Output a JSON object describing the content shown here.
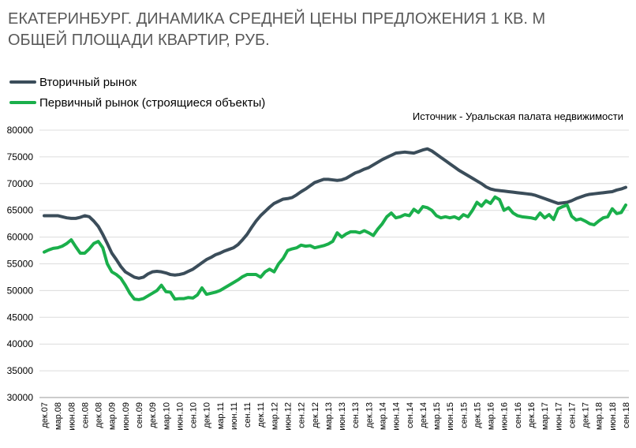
{
  "chart_data": {
    "type": "line",
    "title": "ЕКАТЕРИНБУРГ. ДИНАМИКА СРЕДНЕЙ ЦЕНЫ ПРЕДЛОЖЕНИЯ 1 КВ. М ОБЩЕЙ ПЛОЩАДИ КВАРТИР,  РУБ.",
    "source": "Источник - Уральская палата недвижимости",
    "categories": [
      "дек.07",
      null,
      null,
      "мар.08",
      null,
      null,
      "июн.08",
      null,
      null,
      "сен.08",
      null,
      null,
      "дек.08",
      null,
      null,
      "мар.09",
      null,
      null,
      "июн.09",
      null,
      null,
      "сен.09",
      null,
      null,
      "дек.09",
      null,
      null,
      "мар.10",
      null,
      null,
      "июн.10",
      null,
      null,
      "сен.10",
      null,
      null,
      "дек.10",
      null,
      null,
      "мар.11",
      null,
      null,
      "июн.11",
      null,
      null,
      "сен.11",
      null,
      null,
      "дек.11",
      null,
      null,
      "мар.12",
      null,
      null,
      "июн.12",
      null,
      null,
      "сен.12",
      null,
      null,
      "дек.12",
      null,
      null,
      "мар.13",
      null,
      null,
      "июн.13",
      null,
      null,
      "сен.13",
      null,
      null,
      "дек.13",
      null,
      null,
      "мар.14",
      null,
      null,
      "июн.14",
      null,
      null,
      "сен.14",
      null,
      null,
      "дек.14",
      null,
      null,
      "мар.15",
      null,
      null,
      "июн.15",
      null,
      null,
      "сен.15",
      null,
      null,
      "дек.15",
      null,
      null,
      "мар.16",
      null,
      null,
      "июн.16",
      null,
      null,
      "сен.16",
      null,
      null,
      "дек.16",
      null,
      null,
      "мар.17",
      null,
      null,
      "июн.17",
      null,
      null,
      "сен.17",
      null,
      null,
      "дек.17",
      null,
      null,
      "мар.18",
      null,
      null,
      "июн.18",
      null,
      null,
      "сен.18"
    ],
    "series": [
      {
        "name": "Вторичный рынок",
        "color": "#3b4d5a",
        "values": [
          64000,
          64000,
          64000,
          64000,
          63800,
          63600,
          63500,
          63500,
          63700,
          64000,
          63800,
          63000,
          62000,
          60500,
          58800,
          57000,
          55800,
          54500,
          53500,
          53000,
          52500,
          52300,
          52500,
          53100,
          53500,
          53600,
          53500,
          53300,
          53000,
          52900,
          53000,
          53200,
          53600,
          54000,
          54600,
          55200,
          55800,
          56200,
          56700,
          57000,
          57400,
          57700,
          58000,
          58600,
          59500,
          60500,
          61800,
          63000,
          64000,
          64800,
          65600,
          66300,
          66700,
          67100,
          67200,
          67400,
          67900,
          68500,
          69000,
          69600,
          70200,
          70500,
          70800,
          70800,
          70700,
          70600,
          70700,
          71000,
          71500,
          72000,
          72300,
          72700,
          73000,
          73500,
          74000,
          74500,
          74900,
          75300,
          75700,
          75800,
          75900,
          75800,
          75700,
          76000,
          76300,
          76500,
          76100,
          75500,
          74900,
          74300,
          73700,
          73100,
          72500,
          72000,
          71500,
          71000,
          70500,
          70000,
          69400,
          69000,
          68800,
          68700,
          68600,
          68500,
          68400,
          68300,
          68200,
          68100,
          68000,
          67800,
          67500,
          67200,
          66900,
          66600,
          66300,
          66400,
          66500,
          66800,
          67200,
          67500,
          67800,
          68000,
          68100,
          68200,
          68300,
          68400,
          68500,
          68800,
          69000,
          69300
        ]
      },
      {
        "name": "Первичный рынок (строящиеся объекты)",
        "color": "#1aaf4b",
        "values": [
          57200,
          57600,
          57900,
          58000,
          58300,
          58800,
          59500,
          58200,
          57000,
          57000,
          57800,
          58800,
          59200,
          58000,
          55000,
          53500,
          53000,
          52300,
          51000,
          49500,
          48400,
          48300,
          48500,
          49000,
          49500,
          50000,
          51000,
          49800,
          49700,
          48400,
          48500,
          48500,
          48700,
          48600,
          49200,
          50500,
          49300,
          49500,
          49700,
          50000,
          50500,
          51000,
          51500,
          52000,
          52600,
          53000,
          53000,
          53000,
          52500,
          53500,
          54000,
          53500,
          55000,
          56000,
          57500,
          57800,
          58000,
          58500,
          58300,
          58400,
          58000,
          58200,
          58400,
          58700,
          59200,
          60800,
          60000,
          60600,
          61000,
          61000,
          60800,
          61200,
          60800,
          60300,
          61500,
          62500,
          63800,
          64500,
          63600,
          63800,
          64200,
          64000,
          65200,
          64600,
          65700,
          65500,
          65000,
          64000,
          63600,
          63800,
          63600,
          63800,
          63400,
          64200,
          63800,
          65000,
          66500,
          65800,
          66800,
          66300,
          67500,
          67000,
          65000,
          65500,
          64500,
          64000,
          63800,
          63700,
          63600,
          63400,
          64500,
          63600,
          64200,
          63300,
          65300,
          65700,
          66000,
          63900,
          63200,
          63400,
          63000,
          62500,
          62300,
          63000,
          63600,
          63800,
          65300,
          64400,
          64600,
          66000
        ]
      }
    ],
    "ylim": [
      30000,
      80000
    ],
    "yticks": [
      30000,
      35000,
      40000,
      45000,
      50000,
      55000,
      60000,
      65000,
      70000,
      75000,
      80000
    ],
    "grid": true
  }
}
